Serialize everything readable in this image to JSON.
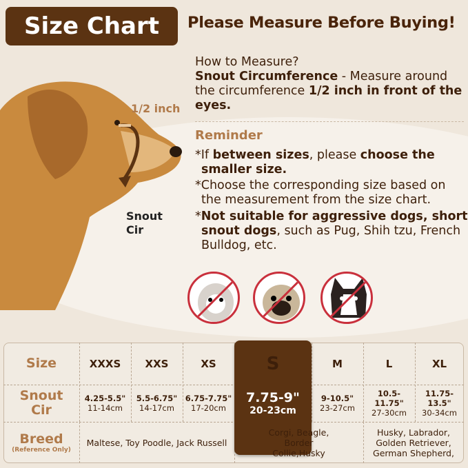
{
  "title": "Size Chart",
  "headline": "Please Measure Before Buying!",
  "how": {
    "q": "How to Measure?",
    "b1": "Snout Circumference",
    "t1": " - Measure around the circumference ",
    "b2": "1/2 inch in front of the eyes."
  },
  "reminder": {
    "heading": "Reminder",
    "r1": {
      "a": "*If ",
      "b": "between sizes",
      "c": ", please ",
      "d": "choose the smaller size",
      "e": "."
    },
    "r2": "*Choose the corresponding size based on the measurement from the size chart.",
    "r3": {
      "a": "*",
      "b": "Not suitable for aggressive dogs, short snout dogs",
      "c": ", such as Pug, Shih tzu, French Bulldog, etc."
    }
  },
  "diagram": {
    "half_inch": "1/2 inch",
    "snout_line1": "Snout",
    "snout_line2": "Cir"
  },
  "not_suitable_breeds": [
    "Shih tzu",
    "Pug",
    "French Bulldog"
  ],
  "colors": {
    "brand": "#5b3312",
    "accent": "#b07a4a",
    "prohibit": "#c9303c"
  },
  "table": {
    "row_labels": {
      "size": "Size",
      "snout1": "Snout",
      "snout2": "Cir",
      "breed": "Breed",
      "breed_note": "(Reference Only)"
    },
    "sizes": [
      {
        "size": "XXXS",
        "in": "4.25-5.5\"",
        "cm": "11-14cm"
      },
      {
        "size": "XXS",
        "in": "5.5-6.75\"",
        "cm": "14-17cm"
      },
      {
        "size": "XS",
        "in": "6.75-7.75\"",
        "cm": "17-20cm"
      },
      {
        "size": "S",
        "in": "7.75-9\"",
        "cm": "20-23cm",
        "highlighted": true
      },
      {
        "size": "M",
        "in": "9-10.5\"",
        "cm": "23-27cm"
      },
      {
        "size": "L",
        "in": "10.5-11.75\"",
        "cm": "27-30cm"
      },
      {
        "size": "XL",
        "in": "11.75-13.5\"",
        "cm": "30-34cm"
      }
    ],
    "breeds": [
      "Maltese, Toy Poodle, Jack Russell",
      "Corgi, Beagle, Border Collie,Husky",
      "Husky, Labrador, Golden Retriever, German Shepherd,"
    ]
  }
}
